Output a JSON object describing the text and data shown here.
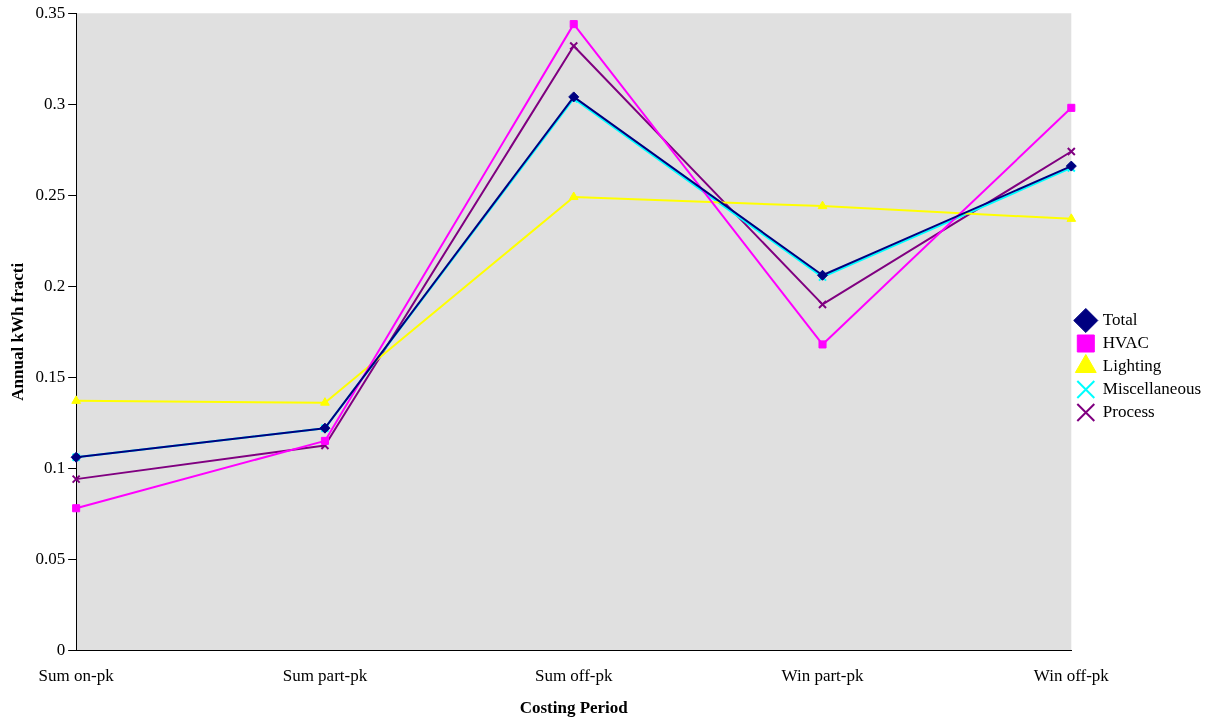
{
  "chart_data": {
    "type": "line",
    "xlabel": "Costing Period",
    "ylabel": "Annual kWh fracti",
    "categories": [
      "Sum on-pk",
      "Sum part-pk",
      "Sum off-pk",
      "Win part-pk",
      "Win off-pk"
    ],
    "series": [
      {
        "name": "Total",
        "color": "#000080",
        "marker": "diamond",
        "values": [
          0.106,
          0.122,
          0.304,
          0.206,
          0.266
        ]
      },
      {
        "name": "HVAC",
        "color": "#ff00ff",
        "marker": "square",
        "values": [
          0.078,
          0.115,
          0.344,
          0.168,
          0.298
        ]
      },
      {
        "name": "Lighting",
        "color": "#ffff00",
        "marker": "triangle",
        "values": [
          0.137,
          0.136,
          0.249,
          0.244,
          0.237
        ]
      },
      {
        "name": "Miscellaneous",
        "color": "#00ffff",
        "marker": "cross",
        "values": [
          0.106,
          0.122,
          0.303,
          0.205,
          0.265
        ]
      },
      {
        "name": "Process",
        "color": "#800080",
        "marker": "cross",
        "values": [
          0.094,
          0.1125,
          0.332,
          0.19,
          0.274
        ]
      }
    ],
    "ylim": [
      0,
      0.35
    ],
    "yticks": [
      0,
      0.05,
      0.1,
      0.15,
      0.2,
      0.25,
      0.3,
      0.35
    ],
    "grid": false,
    "legend": "right",
    "line_style": "solid"
  }
}
